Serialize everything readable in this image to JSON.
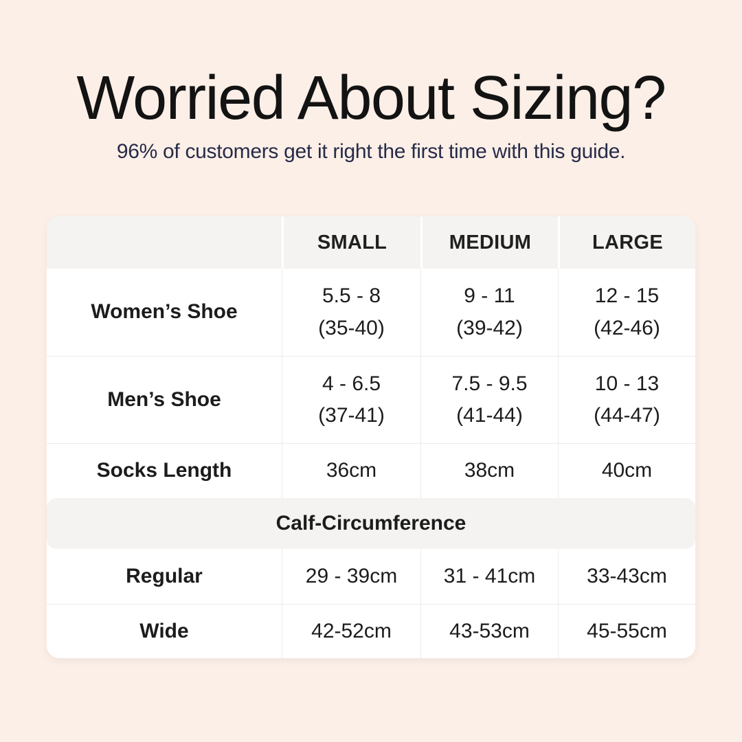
{
  "colors": {
    "page_background": "#fcefe7",
    "card_background": "#ffffff",
    "header_band": "#f4f3f1",
    "divider": "#ececec",
    "title_text": "#131313",
    "subtitle_text": "#272b49",
    "table_text": "#1c1c1c"
  },
  "chart_data": {
    "type": "table",
    "title": "Worried About Sizing?",
    "subtitle": "96% of customers get it right the first time with this guide.",
    "header_row": [
      "",
      "SMALL",
      "MEDIUM",
      "LARGE"
    ],
    "rows": [
      {
        "label": "Women’s Shoe",
        "values": [
          "5.5 - 8\n(35-40)",
          "9 - 11\n(39-42)",
          "12 - 15\n(42-46)"
        ]
      },
      {
        "label": "Men’s Shoe",
        "values": [
          "4 - 6.5\n(37-41)",
          "7.5 - 9.5\n(41-44)",
          "10 - 13\n(44-47)"
        ]
      },
      {
        "label": "Socks Length",
        "values": [
          "36cm",
          "38cm",
          "40cm"
        ]
      }
    ],
    "section_header": "Calf-Circumference",
    "section_rows": [
      {
        "label": "Regular",
        "values": [
          "29 - 39cm",
          "31 - 41cm",
          "33-43cm"
        ]
      },
      {
        "label": "Wide",
        "values": [
          "42-52cm",
          "43-53cm",
          "45-55cm"
        ]
      }
    ]
  }
}
